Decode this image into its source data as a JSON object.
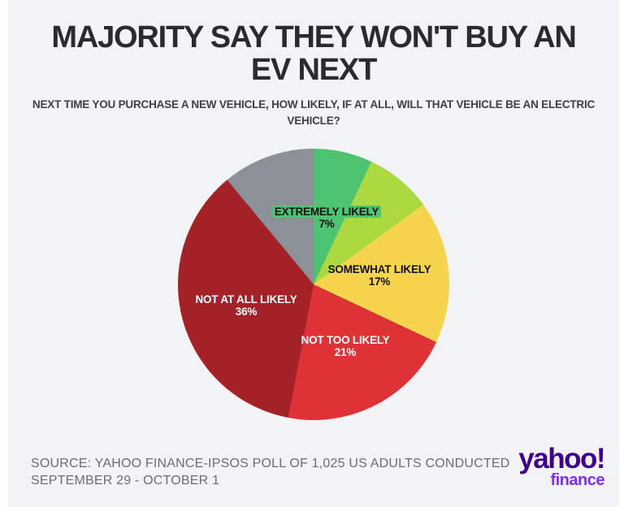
{
  "header": {
    "title_lines": [
      "MAJORITY SAY THEY WON'T BUY AN",
      "EV NEXT"
    ],
    "subtitle_lines": [
      "NEXT TIME YOU PURCHASE A NEW VEHICLE, HOW LIKELY, IF AT ALL, WILL THAT VEHICLE BE AN ELECTRIC",
      "VEHICLE?"
    ]
  },
  "chart_data": {
    "type": "pie",
    "title": "MAJORITY SAY THEY WON'T BUY AN EV NEXT",
    "question": "NEXT TIME YOU PURCHASE A NEW VEHICLE, HOW LIKELY, IF AT ALL, WILL THAT VEHICLE BE AN ELECTRIC VEHICLE?",
    "unit": "percent",
    "start_angle_deg": 0,
    "direction": "clockwise",
    "slices": [
      {
        "label": "EXTREMELY LIKELY",
        "pct": "7%",
        "value": 7,
        "color": "#4dc472",
        "labeled": true
      },
      {
        "label": "",
        "pct": "",
        "value": 8,
        "color": "#abd93f",
        "labeled": false,
        "estimated": true
      },
      {
        "label": "SOMEWHAT LIKELY",
        "pct": "17%",
        "value": 17,
        "color": "#f6d44c",
        "labeled": true
      },
      {
        "label": "NOT TOO LIKELY",
        "pct": "21%",
        "value": 21,
        "color": "#de3237",
        "labeled": true
      },
      {
        "label": "NOT AT ALL LIKELY",
        "pct": "36%",
        "value": 36,
        "color": "#a42128",
        "labeled": true
      },
      {
        "label": "",
        "pct": "",
        "value": 11,
        "color": "#8c9198",
        "labeled": false,
        "estimated": true
      }
    ]
  },
  "footer": {
    "source_lines": [
      "SOURCE: YAHOO FINANCE-IPSOS POLL OF 1,025 US ADULTS CONDUCTED",
      "SEPTEMBER 29 - OCTOBER 1"
    ]
  },
  "branding": {
    "wordmark": "yahoo!",
    "sub_wordmark": "finance",
    "wordmark_color": "#400090",
    "sub_wordmark_color": "#7d2eff"
  },
  "colors": {
    "card_background": "#f2f3f5",
    "title_text": "#2a2b2d",
    "subtitle_text": "#3e4042",
    "source_text": "#6b6e71"
  }
}
